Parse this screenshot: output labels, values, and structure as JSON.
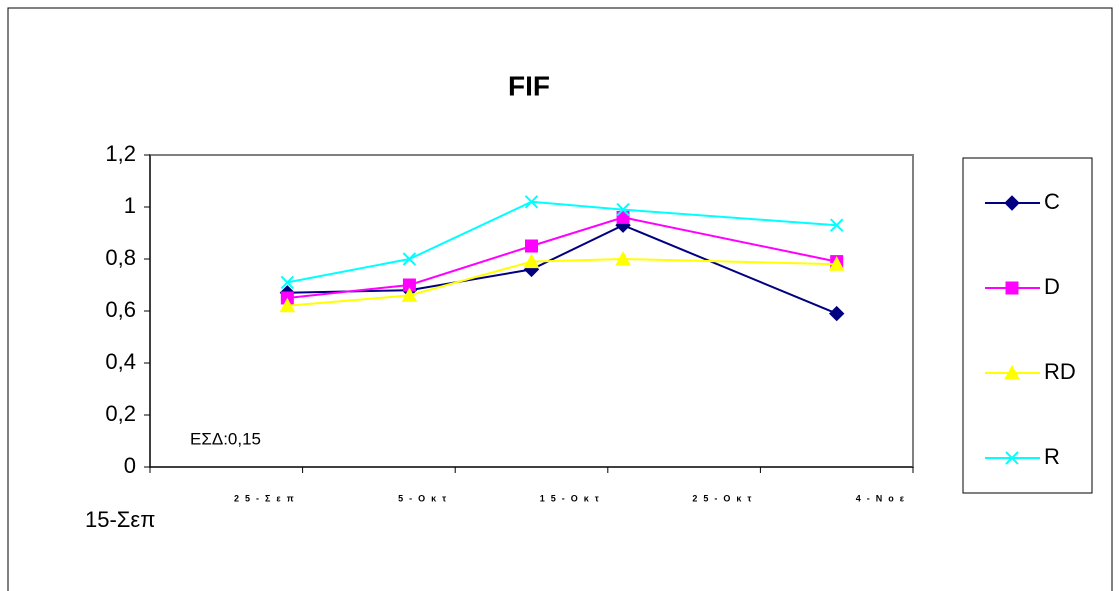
{
  "chart_data": {
    "type": "line",
    "title": "FIF",
    "x": [
      9,
      17,
      25,
      31,
      45
    ],
    "xlim": [
      0,
      50
    ],
    "xticks": [
      {
        "value": 0,
        "label": "15-Σεπ"
      },
      {
        "value": 10,
        "label": "25-Σεπ"
      },
      {
        "value": 20,
        "label": "5-Οκτ"
      },
      {
        "value": 30,
        "label": "15-Οκτ"
      },
      {
        "value": 40,
        "label": "25-Οκτ"
      },
      {
        "value": 50,
        "label": "4-Νοε"
      }
    ],
    "ylim": [
      0,
      1.2
    ],
    "yticks": [
      0,
      {
        "value": 0.2,
        "label": "0,2"
      },
      {
        "value": 0.4,
        "label": "0,4"
      },
      {
        "value": 0.6,
        "label": "0,6"
      },
      {
        "value": 0.8,
        "label": "0,8"
      },
      1,
      {
        "value": 1.2,
        "label": "1,2"
      }
    ],
    "annotation": "ΕΣΔ:0,15",
    "legend": "right",
    "series": [
      {
        "name": "C",
        "color": "#000080",
        "marker": "diamond",
        "values": [
          0.67,
          0.68,
          0.76,
          0.93,
          0.59
        ]
      },
      {
        "name": "D",
        "color": "#FF00FF",
        "marker": "square",
        "values": [
          0.65,
          0.7,
          0.85,
          0.96,
          0.79
        ]
      },
      {
        "name": "RD",
        "color": "#FFFF00",
        "marker": "triangle",
        "values": [
          0.62,
          0.66,
          0.79,
          0.8,
          0.78
        ]
      },
      {
        "name": "R",
        "color": "#00FFFF",
        "marker": "x",
        "values": [
          0.71,
          0.8,
          1.02,
          0.99,
          0.93
        ]
      }
    ]
  }
}
